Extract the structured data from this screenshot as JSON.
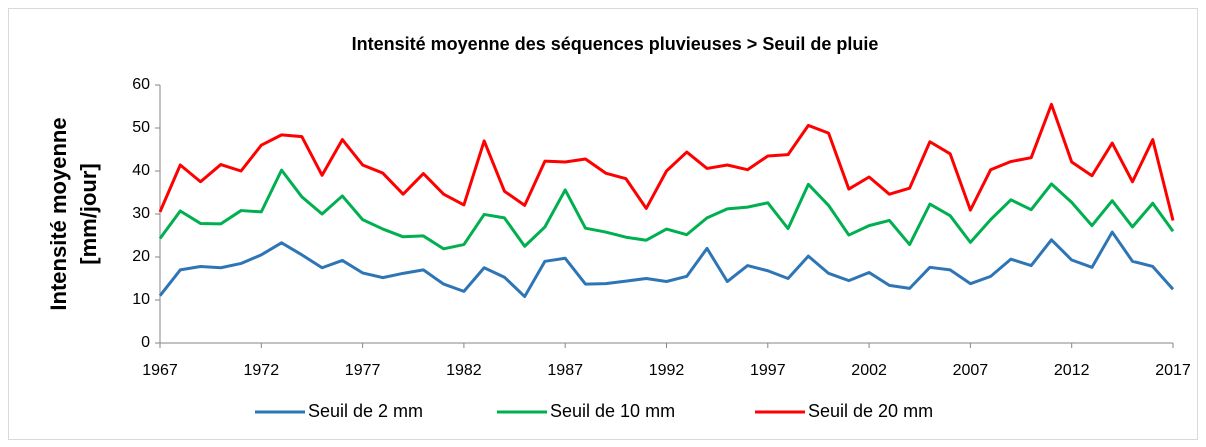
{
  "chart_data": {
    "type": "line",
    "title": "Intensité moyenne des séquences pluvieuses > Seuil de pluie",
    "ylabel": [
      "Intensité moyenne",
      "[mm/jour]"
    ],
    "x": [
      1967,
      1968,
      1969,
      1970,
      1971,
      1972,
      1973,
      1974,
      1975,
      1976,
      1977,
      1978,
      1979,
      1980,
      1981,
      1982,
      1983,
      1984,
      1985,
      1986,
      1987,
      1988,
      1989,
      1990,
      1991,
      1992,
      1993,
      1994,
      1995,
      1996,
      1997,
      1998,
      1999,
      2000,
      2001,
      2002,
      2003,
      2004,
      2005,
      2006,
      2007,
      2008,
      2009,
      2010,
      2011,
      2012,
      2013,
      2014,
      2015,
      2016,
      2017
    ],
    "series": [
      {
        "name": "Seuil de 2 mm",
        "color": "#2e75b6",
        "values": [
          11,
          17,
          17.8,
          17.5,
          18.5,
          20.5,
          23.3,
          20.5,
          17.5,
          19.2,
          16.3,
          15.2,
          16.2,
          17,
          13.7,
          12,
          17.5,
          15.3,
          10.8,
          19,
          19.7,
          13.7,
          13.8,
          14.4,
          15,
          14.3,
          15.5,
          22,
          14.3,
          18,
          16.8,
          15,
          20.2,
          16.2,
          14.5,
          16.4,
          13.4,
          12.7,
          17.6,
          17,
          13.8,
          15.5,
          19.5,
          18,
          24,
          19.3,
          17.6,
          25.8,
          19,
          17.8,
          12.5
        ]
      },
      {
        "name": "Seuil de 10 mm",
        "color": "#00b050",
        "values": [
          24.3,
          30.7,
          27.8,
          27.7,
          30.8,
          30.5,
          40.2,
          34,
          30,
          34.2,
          28.7,
          26.5,
          24.7,
          24.9,
          21.9,
          22.9,
          29.9,
          29.1,
          22.5,
          27,
          35.6,
          26.7,
          25.8,
          24.6,
          23.9,
          26.5,
          25.2,
          29.1,
          31.2,
          31.6,
          32.6,
          26.6,
          36.9,
          32,
          25.1,
          27.3,
          28.5,
          22.9,
          32.3,
          29.6,
          23.4,
          28.7,
          33.3,
          31,
          37,
          32.7,
          27.3,
          33.1,
          27,
          32.5,
          26
        ]
      },
      {
        "name": "Seuil de 20 mm",
        "color": "#ff0000",
        "values": [
          30.5,
          41.4,
          37.5,
          41.5,
          40,
          46,
          48.4,
          48,
          39,
          47.3,
          41.4,
          39.5,
          34.6,
          39.4,
          34.6,
          32.1,
          47,
          35.3,
          32,
          42.3,
          42.1,
          42.8,
          39.5,
          38.2,
          31.3,
          40,
          44.4,
          40.6,
          41.4,
          40.3,
          43.5,
          43.8,
          50.6,
          48.8,
          35.8,
          38.6,
          34.6,
          36,
          46.8,
          44,
          30.9,
          40.3,
          42.2,
          43.1,
          55.5,
          42.1,
          38.9,
          46.5,
          37.5,
          47.3,
          28.5
        ]
      }
    ],
    "xlim": [
      1967,
      2017
    ],
    "xticks": [
      1967,
      1972,
      1977,
      1982,
      1987,
      1992,
      1997,
      2002,
      2007,
      2012,
      2017
    ],
    "ylim": [
      0,
      60
    ],
    "yticks": [
      0,
      10,
      20,
      30,
      40,
      50,
      60
    ],
    "grid": false,
    "legend": "bottom"
  }
}
